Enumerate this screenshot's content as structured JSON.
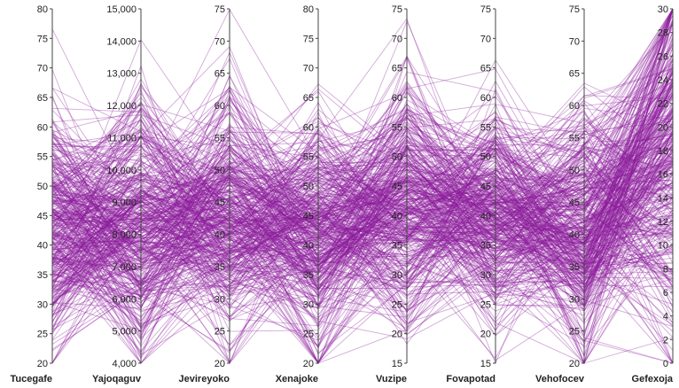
{
  "chart_data": {
    "type": "parallel_coordinates",
    "title": "",
    "line_color": "#8b1a9b",
    "line_opacity": 0.38,
    "record_count": 420,
    "axes": [
      {
        "name": "Tucegafe",
        "range": [
          20,
          80
        ],
        "ticks": [
          20,
          25,
          30,
          35,
          40,
          45,
          50,
          55,
          60,
          65,
          70,
          75,
          80
        ],
        "tick_labels": [
          "20",
          "25",
          "30",
          "35",
          "40",
          "45",
          "50",
          "55",
          "60",
          "65",
          "70",
          "75",
          "80"
        ],
        "tick_side": "left",
        "mean": 43,
        "sd": 10
      },
      {
        "name": "Yajoqaguv",
        "range": [
          4000,
          15000
        ],
        "ticks": [
          4000,
          5000,
          6000,
          7000,
          8000,
          9000,
          10000,
          11000,
          12000,
          13000,
          14000,
          15000
        ],
        "tick_labels": [
          "4,000",
          "5,000",
          "6,000",
          "7,000",
          "8,000",
          "9,000",
          "10,000",
          "11,000",
          "12,000",
          "13,000",
          "14,000",
          "15,000"
        ],
        "tick_side": "left",
        "mean": 8300,
        "sd": 2100
      },
      {
        "name": "Jevireyoko",
        "range": [
          20,
          75
        ],
        "ticks": [
          20,
          25,
          30,
          35,
          40,
          45,
          50,
          55,
          60,
          65,
          70,
          75
        ],
        "tick_labels": [
          "20",
          "25",
          "30",
          "35",
          "40",
          "45",
          "50",
          "55",
          "60",
          "65",
          "70",
          "75"
        ],
        "tick_side": "left",
        "mean": 43,
        "sd": 9
      },
      {
        "name": "Xenajoke",
        "range": [
          20,
          80
        ],
        "ticks": [
          20,
          25,
          30,
          35,
          40,
          45,
          50,
          55,
          60,
          65,
          70,
          75,
          80
        ],
        "tick_labels": [
          "20",
          "25",
          "30",
          "35",
          "40",
          "45",
          "50",
          "55",
          "60",
          "65",
          "70",
          "75",
          "80"
        ],
        "tick_side": "left",
        "mean": 42,
        "sd": 10
      },
      {
        "name": "Vuzipe",
        "range": [
          15,
          75
        ],
        "ticks": [
          15,
          20,
          25,
          30,
          35,
          40,
          45,
          50,
          55,
          60,
          65,
          70,
          75
        ],
        "tick_labels": [
          "15",
          "20",
          "25",
          "30",
          "35",
          "40",
          "45",
          "50",
          "55",
          "60",
          "65",
          "70",
          "75"
        ],
        "tick_side": "left",
        "mean": 43,
        "sd": 10
      },
      {
        "name": "Fovapotad",
        "range": [
          15,
          75
        ],
        "ticks": [
          15,
          20,
          25,
          30,
          35,
          40,
          45,
          50,
          55,
          60,
          65,
          70,
          75
        ],
        "tick_labels": [
          "15",
          "20",
          "25",
          "30",
          "35",
          "40",
          "45",
          "50",
          "55",
          "60",
          "65",
          "70",
          "75"
        ],
        "tick_side": "left",
        "mean": 41,
        "sd": 9
      },
      {
        "name": "Vehofocev",
        "range": [
          20,
          75
        ],
        "ticks": [
          20,
          25,
          30,
          35,
          40,
          45,
          50,
          55,
          60,
          65,
          70,
          75
        ],
        "tick_labels": [
          "20",
          "25",
          "30",
          "35",
          "40",
          "45",
          "50",
          "55",
          "60",
          "65",
          "70",
          "75"
        ],
        "tick_side": "left",
        "mean": 41,
        "sd": 9
      },
      {
        "name": "Gefexoja",
        "range": [
          0,
          30
        ],
        "ticks": [
          0,
          2,
          4,
          6,
          8,
          10,
          12,
          14,
          16,
          18,
          20,
          22,
          24,
          26,
          28,
          30
        ],
        "tick_labels": [
          "0",
          "2",
          "4",
          "6",
          "8",
          "10",
          "12",
          "14",
          "16",
          "18",
          "20",
          "22",
          "24",
          "26",
          "28",
          "30"
        ],
        "tick_side": "left",
        "mean": 18,
        "sd": 8
      }
    ]
  }
}
